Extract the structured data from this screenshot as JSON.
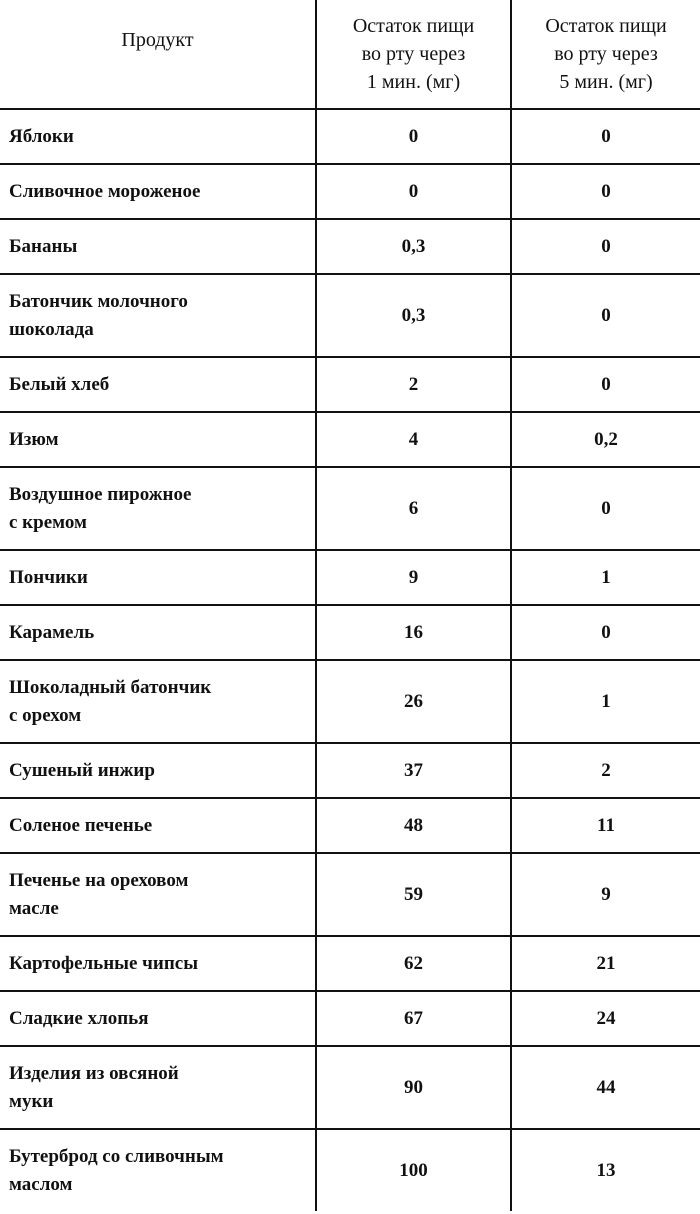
{
  "table": {
    "headers": [
      "Продукт",
      "Остаток пищи во рту через 1 мин. (мг)",
      "Остаток пищи во рту через 5 мин. (мг)"
    ],
    "rows": [
      {
        "product": "Яблоки",
        "min1": "0",
        "min5": "0"
      },
      {
        "product": "Сливочное мороженое",
        "min1": "0",
        "min5": "0"
      },
      {
        "product": "Бананы",
        "min1": "0,3",
        "min5": "0"
      },
      {
        "product": "Батончик молочного шоколада",
        "min1": "0,3",
        "min5": "0"
      },
      {
        "product": "Белый хлеб",
        "min1": "2",
        "min5": "0"
      },
      {
        "product": "Изюм",
        "min1": "4",
        "min5": "0,2"
      },
      {
        "product": "Воздушное пирожное с кремом",
        "min1": "6",
        "min5": "0"
      },
      {
        "product": "Пончики",
        "min1": "9",
        "min5": "1"
      },
      {
        "product": "Карамель",
        "min1": "16",
        "min5": "0"
      },
      {
        "product": "Шоколадный батончик с орехом",
        "min1": "26",
        "min5": "1"
      },
      {
        "product": "Сушеный инжир",
        "min1": "37",
        "min5": "2"
      },
      {
        "product": "Соленое печенье",
        "min1": "48",
        "min5": "11"
      },
      {
        "product": "Печенье на ореховом масле",
        "min1": "59",
        "min5": "9"
      },
      {
        "product": "Картофельные чипсы",
        "min1": "62",
        "min5": "21"
      },
      {
        "product": "Сладкие хлопья",
        "min1": "67",
        "min5": "24"
      },
      {
        "product": "Изделия из овсяной муки",
        "min1": "90",
        "min5": "44"
      },
      {
        "product": "Бутерброд со сливочным маслом",
        "min1": "100",
        "min5": "13"
      }
    ]
  }
}
